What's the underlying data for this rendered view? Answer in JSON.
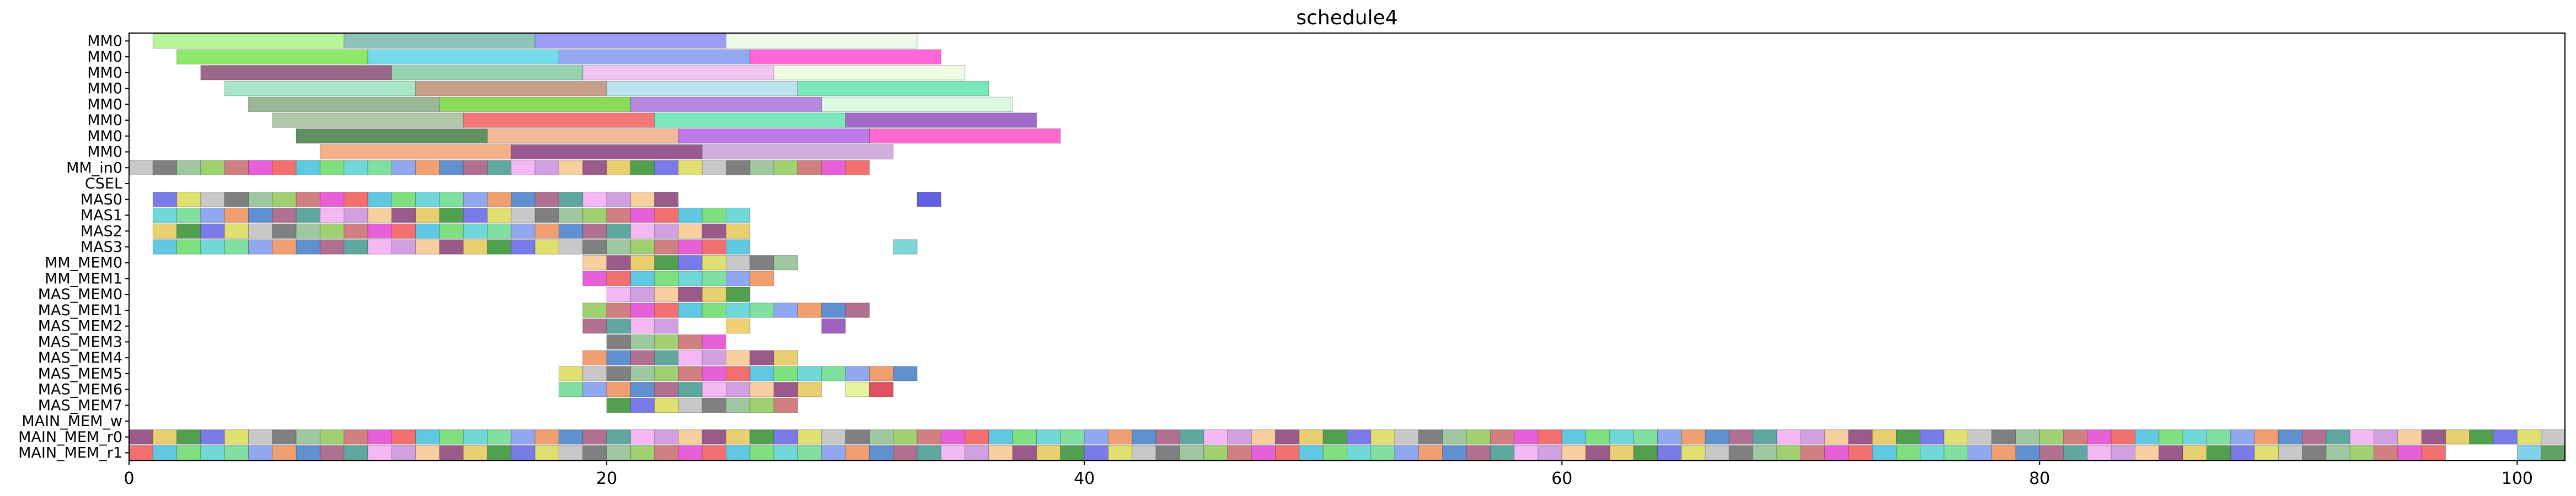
{
  "chart_data": {
    "type": "gantt",
    "title": "schedule4",
    "xlabel": "",
    "ylabel": "",
    "xlim": [
      0,
      102
    ],
    "x_ticks": [
      0,
      20,
      40,
      60,
      80,
      100
    ],
    "grid": false,
    "legend": "none",
    "rows": [
      "MM0",
      "MM0",
      "MM0",
      "MM0",
      "MM0",
      "MM0",
      "MM0",
      "MM0",
      "MM_in0",
      "CSEL",
      "MAS0",
      "MAS1",
      "MAS2",
      "MAS3",
      "MM_MEM0",
      "MM_MEM1",
      "MAS_MEM0",
      "MAS_MEM1",
      "MAS_MEM2",
      "MAS_MEM3",
      "MAS_MEM4",
      "MAS_MEM5",
      "MAS_MEM6",
      "MAS_MEM7",
      "MAIN_MEM_w",
      "MAIN_MEM_r0",
      "MAIN_MEM_r1"
    ],
    "palette": [
      "#7fe07f",
      "#5fa8a0",
      "#7a7ae8",
      "#e860d8",
      "#f0a070",
      "#9a5a8a",
      "#a0c8a0",
      "#70d8d8",
      "#f4b8f4",
      "#e0e070",
      "#f47070",
      "#6090d0",
      "#e8d070",
      "#a0d070",
      "#80e0a0",
      "#d0a0e0",
      "#c8c8c8",
      "#60c8e0",
      "#b07090",
      "#50a050",
      "#d08080",
      "#90a8f0",
      "#f8d0a0",
      "#808080"
    ],
    "bars": [
      {
        "row": 0,
        "segments": [
          [
            1,
            9,
            "#b8f59a"
          ],
          [
            9,
            17,
            "#8fc2b8"
          ],
          [
            17,
            25,
            "#9c9cf2"
          ],
          [
            25,
            33,
            "#eef8e8"
          ]
        ]
      },
      {
        "row": 1,
        "segments": [
          [
            2,
            10,
            "#8ee86a"
          ],
          [
            10,
            18,
            "#74dce8"
          ],
          [
            18,
            26,
            "#94a8f2"
          ],
          [
            26,
            34,
            "#ff66d8"
          ]
        ]
      },
      {
        "row": 2,
        "segments": [
          [
            3,
            11,
            "#9a6888"
          ],
          [
            11,
            19,
            "#96d4b0"
          ],
          [
            19,
            27,
            "#f2c6f2"
          ],
          [
            27,
            35,
            "#eefae4"
          ]
        ]
      },
      {
        "row": 3,
        "segments": [
          [
            4,
            12,
            "#a8e6c8"
          ],
          [
            12,
            20,
            "#c8a088"
          ],
          [
            20,
            28,
            "#bce2f0"
          ],
          [
            28,
            36,
            "#7ae8b8"
          ]
        ]
      },
      {
        "row": 4,
        "segments": [
          [
            5,
            13,
            "#9ab898"
          ],
          [
            13,
            21,
            "#8adc5a"
          ],
          [
            21,
            29,
            "#b888e0"
          ],
          [
            29,
            37,
            "#dcf8e0"
          ]
        ]
      },
      {
        "row": 5,
        "segments": [
          [
            6,
            14,
            "#b0c8a8"
          ],
          [
            14,
            22,
            "#f47878"
          ],
          [
            22,
            30,
            "#7ce8bc"
          ],
          [
            30,
            38,
            "#a06cc8"
          ]
        ]
      },
      {
        "row": 6,
        "segments": [
          [
            7,
            15,
            "#609060"
          ],
          [
            15,
            23,
            "#f2b898"
          ],
          [
            23,
            31,
            "#be7ae8"
          ],
          [
            31,
            39,
            "#ff6ad0"
          ]
        ]
      },
      {
        "row": 7,
        "segments": [
          [
            8,
            16,
            "#f6b088"
          ],
          [
            16,
            24,
            "#9a5c90"
          ],
          [
            24,
            32,
            "#d2aede"
          ]
        ]
      },
      {
        "row": 8,
        "start": 0,
        "width": 1,
        "count": 31
      },
      {
        "row": 10,
        "start": 1,
        "width": 1,
        "count": 22,
        "extra": [
          [
            33,
            34,
            "#6060e0"
          ]
        ]
      },
      {
        "row": 11,
        "start": 1,
        "width": 1,
        "count": 25
      },
      {
        "row": 12,
        "start": 1,
        "width": 1,
        "count": 25
      },
      {
        "row": 13,
        "start": 1,
        "width": 1,
        "count": 25,
        "extra": [
          [
            32,
            33,
            "#7ed6d8"
          ]
        ]
      },
      {
        "row": 14,
        "start": 19,
        "width": 1,
        "count": 9
      },
      {
        "row": 15,
        "start": 19,
        "width": 1,
        "count": 8
      },
      {
        "row": 16,
        "start": 20,
        "width": 1,
        "count": 6
      },
      {
        "row": 17,
        "start": 19,
        "width": 1,
        "count": 12
      },
      {
        "row": 18,
        "start": 19,
        "width": 1,
        "count": 4,
        "extra": [
          [
            25,
            26,
            "#f0d070"
          ],
          [
            29,
            30,
            "#a060c0"
          ]
        ]
      },
      {
        "row": 19,
        "start": 20,
        "width": 1,
        "count": 5
      },
      {
        "row": 20,
        "start": 19,
        "width": 1,
        "count": 9
      },
      {
        "row": 21,
        "start": 18,
        "width": 1,
        "count": 15
      },
      {
        "row": 22,
        "start": 18,
        "width": 1,
        "count": 11,
        "extra": [
          [
            30,
            31,
            "#e8f4a0"
          ],
          [
            31,
            32,
            "#e05060"
          ]
        ]
      },
      {
        "row": 23,
        "start": 20,
        "width": 1,
        "count": 8
      },
      {
        "row": 25,
        "start": 0,
        "width": 1,
        "count": 102
      },
      {
        "row": 26,
        "start": 0,
        "width": 1,
        "count": 97,
        "extra": [
          [
            100,
            101,
            "#80d0e8"
          ],
          [
            101,
            102,
            "#60a060"
          ]
        ]
      }
    ]
  }
}
